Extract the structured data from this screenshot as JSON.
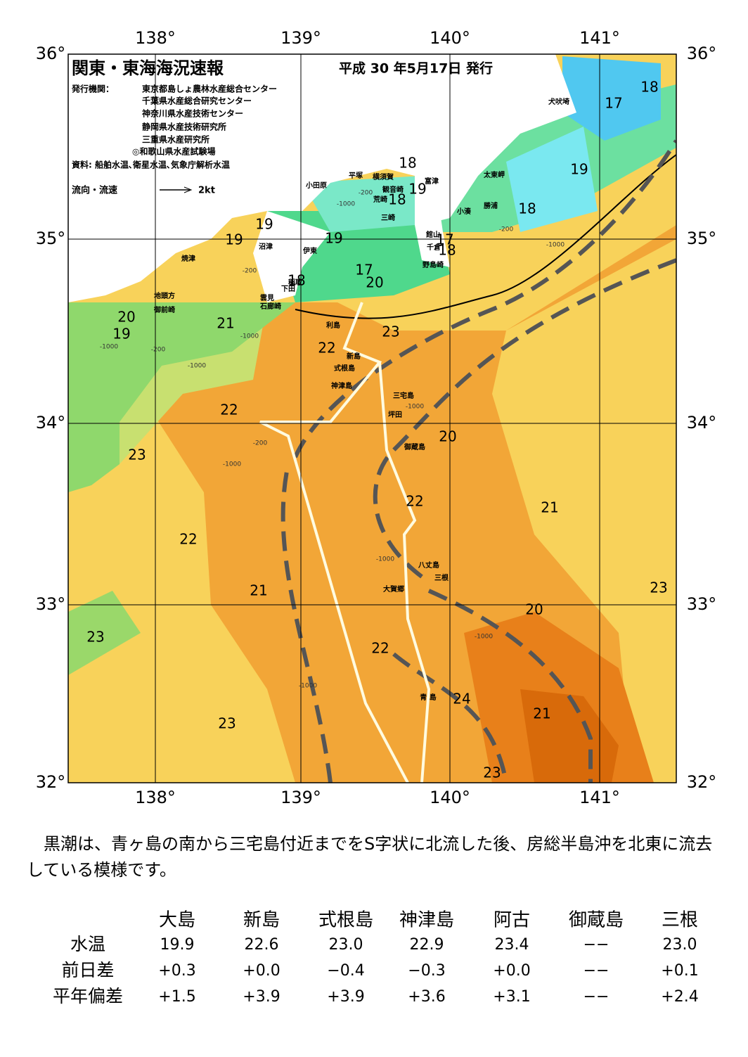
{
  "header": {
    "title": "関東・東海海況速報",
    "date": "平成 30 年5月17日 発行",
    "issuer_label": "発行機関：",
    "issuers": [
      "東京都島しょ農林水産総合センター",
      "千葉県水産総合研究センター",
      "神奈川県水産技術センター",
      "静岡県水産技術研究所",
      "三重県水産研究所",
      "◎和歌山県水産試験場"
    ],
    "source": "資料: 船舶水温､衛星水温､気象庁解析水温",
    "flow_legend": "流向・流速",
    "flow_unit": "2kt"
  },
  "map": {
    "lon_labels": [
      "138°",
      "139°",
      "140°",
      "141°"
    ],
    "lat_labels": [
      "36°",
      "35°",
      "34°",
      "33°",
      "32°"
    ],
    "temperature_labels": [
      "18",
      "17",
      "19",
      "18",
      "18",
      "19",
      "18",
      "19",
      "19",
      "19",
      "17",
      "18",
      "18",
      "17",
      "20",
      "20",
      "19",
      "21",
      "23",
      "22",
      "22",
      "20",
      "23",
      "22",
      "21",
      "22",
      "21",
      "23",
      "20",
      "23",
      "22",
      "24",
      "21",
      "23",
      "23"
    ],
    "depth_labels": [
      "-1000",
      "-200",
      "-200",
      "-1000",
      "-200",
      "-1000",
      "-1000",
      "-200",
      "-1000",
      "-200",
      "-1000",
      "-1000",
      "-1000",
      "-1000",
      "-1000"
    ],
    "places": [
      "犬吠埼",
      "平塚",
      "横須賀",
      "富津",
      "小田原",
      "観音崎",
      "荒崎",
      "太東岬",
      "勝浦",
      "小湊",
      "三崎",
      "館山",
      "千倉",
      "沼津",
      "伊東",
      "焼津",
      "野島崎",
      "稲取",
      "下田",
      "雲見",
      "石廊崎",
      "地頭方",
      "御前崎",
      "利島",
      "新島",
      "式根島",
      "神津島",
      "三宅島",
      "坪田",
      "御蔵島",
      "八丈島",
      "三根",
      "大賀郷",
      "青 島"
    ]
  },
  "description": "黒潮は、青ヶ島の南から三宅島付近までをS字状に北流した後、房総半島沖を北東に流去している模様です。",
  "table": {
    "columns": [
      "大島",
      "新島",
      "式根島",
      "神津島",
      "阿古",
      "御蔵島",
      "三根"
    ],
    "rows": [
      {
        "label": "水温",
        "cells": [
          "19.9",
          "22.6",
          "23.0",
          "22.9",
          "23.4",
          "−−",
          "23.0"
        ]
      },
      {
        "label": "前日差",
        "cells": [
          "+0.3",
          "+0.0",
          "−0.4",
          "−0.3",
          "+0.0",
          "−−",
          "+0.1"
        ]
      },
      {
        "label": "平年偏差",
        "cells": [
          "+1.5",
          "+3.9",
          "+3.9",
          "+3.6",
          "+3.1",
          "−−",
          "+2.4"
        ]
      }
    ]
  }
}
